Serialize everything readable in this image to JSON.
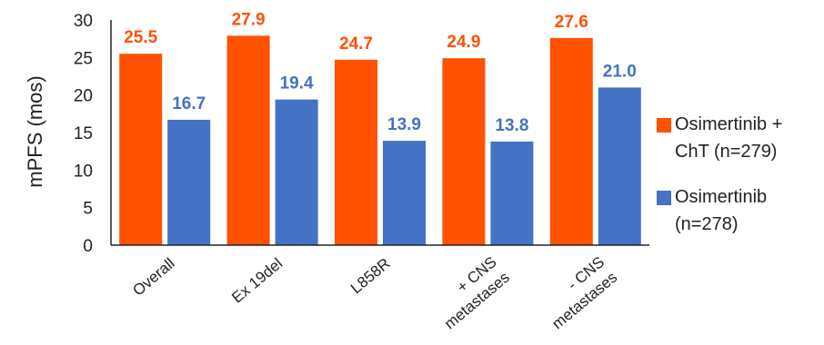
{
  "chart_data": {
    "type": "bar",
    "ylabel": "mPFS (mos)",
    "ylim": [
      0,
      30
    ],
    "yticks": [
      0,
      5,
      10,
      15,
      20,
      25,
      30
    ],
    "categories": [
      [
        "Overall"
      ],
      [
        "Ex 19del"
      ],
      [
        "L858R"
      ],
      [
        "+ CNS",
        "metastases"
      ],
      [
        "- CNS",
        "metastases"
      ]
    ],
    "series": [
      {
        "name": "Osimertinib + ChT (n=279)",
        "legend_lines": [
          "Osimertinib +",
          "ChT (n=279)"
        ],
        "color": "#FF5100",
        "values": [
          25.5,
          27.9,
          24.7,
          24.9,
          27.6
        ],
        "labels": [
          "25.5",
          "27.9",
          "24.7",
          "24.9",
          "27.6"
        ]
      },
      {
        "name": "Osimertinib (n=278)",
        "legend_lines": [
          "Osimertinib",
          "(n=278)"
        ],
        "color": "#4472C4",
        "values": [
          16.7,
          19.4,
          13.9,
          13.8,
          21.0
        ],
        "labels": [
          "16.7",
          "19.4",
          "13.9",
          "13.8",
          "21.0"
        ]
      }
    ],
    "grid": false,
    "legend_position": "right"
  }
}
